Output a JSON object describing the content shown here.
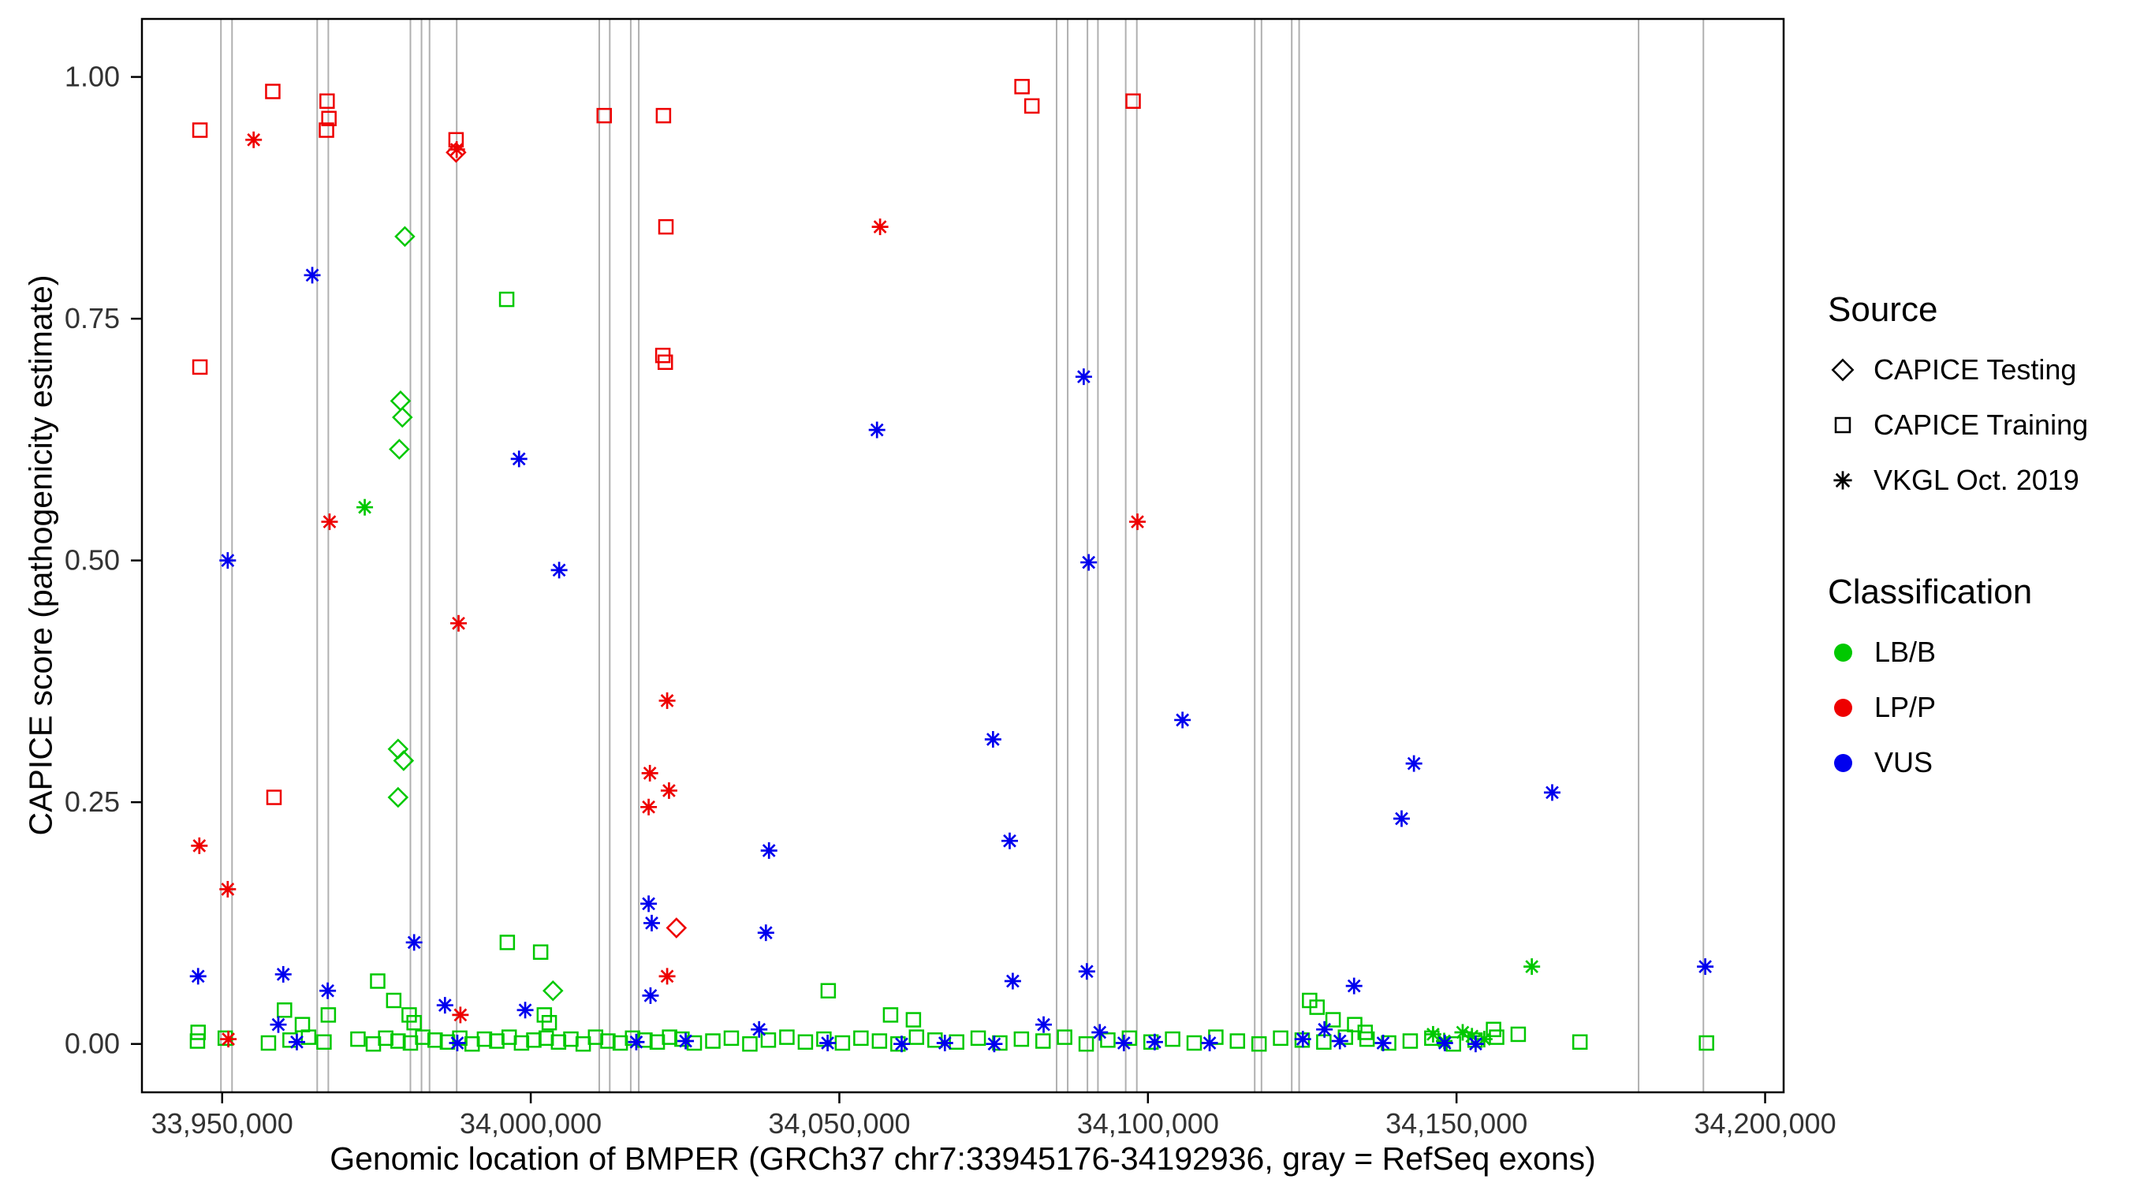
{
  "chart_data": {
    "type": "scatter",
    "title": "",
    "xlabel": "Genomic location of BMPER (GRCh37 chr7:33945176-34192936, gray = RefSeq exons)",
    "ylabel": "CAPICE score (pathogenicity estimate)",
    "xlim": [
      33937000,
      34203000
    ],
    "ylim": [
      -0.05,
      1.06
    ],
    "xticks": [
      33950000,
      34000000,
      34050000,
      34100000,
      34150000,
      34200000
    ],
    "xtick_labels": [
      "33,950,000",
      "34,000,000",
      "34,050,000",
      "34,100,000",
      "34,150,000",
      "34,200,000"
    ],
    "yticks": [
      0,
      0.25,
      0.5,
      0.75,
      1.0
    ],
    "ytick_labels": [
      "0.00",
      "0.25",
      "0.50",
      "0.75",
      "1.00"
    ],
    "grid": false,
    "legend_position": "right",
    "panel_border_color": "#000000",
    "tick_label_color": "#333333",
    "exon_color": "#b0b0b0",
    "exon_positions": [
      33949800,
      33951600,
      33965400,
      33967200,
      33980500,
      33982300,
      33983600,
      33988000,
      34011100,
      34012800,
      34016200,
      34017500,
      34085200,
      34087000,
      34090200,
      34091900,
      34096400,
      34098200,
      34117300,
      34118400,
      34123300,
      34124500,
      34179500,
      34190000
    ],
    "colors": {
      "LB/B": "#00c800",
      "LP/P": "#ee0000",
      "VUS": "#0000ee"
    },
    "shapes": {
      "CAPICE Testing": "diamond",
      "CAPICE Training": "square",
      "VKGL Oct. 2019": "asterisk"
    },
    "legend": {
      "source_title": "Source",
      "source_items": [
        "CAPICE Testing",
        "CAPICE Training",
        "VKGL Oct. 2019"
      ],
      "classification_title": "Classification",
      "classification_items": [
        "LB/B",
        "LP/P",
        "VUS"
      ]
    },
    "series": [
      {
        "source": "CAPICE Testing",
        "classification": "LB/B",
        "points": [
          [
            33979600,
            0.835
          ],
          [
            33978900,
            0.665
          ],
          [
            33979200,
            0.648
          ],
          [
            33978700,
            0.615
          ],
          [
            33978500,
            0.305
          ],
          [
            33979400,
            0.293
          ],
          [
            33978500,
            0.255
          ],
          [
            34003600,
            0.055
          ]
        ]
      },
      {
        "source": "CAPICE Testing",
        "classification": "LP/P",
        "points": [
          [
            33987900,
            0.922
          ],
          [
            34023600,
            0.12
          ]
        ]
      },
      {
        "source": "CAPICE Training",
        "classification": "LP/P",
        "points": [
          [
            33946400,
            0.945
          ],
          [
            33958200,
            0.985
          ],
          [
            33967000,
            0.975
          ],
          [
            33967300,
            0.957
          ],
          [
            33966900,
            0.945
          ],
          [
            33946400,
            0.7
          ],
          [
            33958400,
            0.255
          ],
          [
            33987900,
            0.935
          ],
          [
            34011900,
            0.96
          ],
          [
            34021500,
            0.96
          ],
          [
            34021900,
            0.845
          ],
          [
            34021400,
            0.712
          ],
          [
            34021800,
            0.705
          ],
          [
            34079600,
            0.99
          ],
          [
            34081200,
            0.97
          ],
          [
            34097600,
            0.975
          ]
        ]
      },
      {
        "source": "CAPICE Training",
        "classification": "LB/B",
        "points": [
          [
            33996100,
            0.77
          ],
          [
            33996200,
            0.105
          ],
          [
            34001600,
            0.095
          ],
          [
            34048200,
            0.055
          ],
          [
            33975200,
            0.065
          ],
          [
            33977800,
            0.045
          ],
          [
            33960100,
            0.035
          ],
          [
            33967200,
            0.03
          ],
          [
            33980300,
            0.03
          ],
          [
            33981100,
            0.022
          ],
          [
            33963000,
            0.02
          ],
          [
            34002200,
            0.03
          ],
          [
            34003000,
            0.022
          ],
          [
            34058300,
            0.03
          ],
          [
            34062000,
            0.025
          ],
          [
            34126200,
            0.045
          ],
          [
            34127400,
            0.038
          ],
          [
            34130000,
            0.025
          ],
          [
            34133500,
            0.02
          ],
          [
            34135200,
            0.012
          ],
          [
            33946100,
            0.012
          ],
          [
            34156000,
            0.015
          ],
          [
            34160000,
            0.01
          ],
          [
            33946000,
            0.003
          ],
          [
            33950500,
            0.006
          ],
          [
            33957500,
            0.001
          ],
          [
            33961000,
            0.004
          ],
          [
            33964000,
            0.007
          ],
          [
            33966500,
            0.002
          ],
          [
            33972000,
            0.005
          ],
          [
            33974500,
            0.0
          ],
          [
            33976500,
            0.006
          ],
          [
            33978500,
            0.003
          ],
          [
            33980500,
            0.001
          ],
          [
            33982500,
            0.007
          ],
          [
            33984500,
            0.004
          ],
          [
            33986500,
            0.002
          ],
          [
            33988500,
            0.006
          ],
          [
            33990500,
            0.0
          ],
          [
            33992500,
            0.005
          ],
          [
            33994500,
            0.003
          ],
          [
            33996500,
            0.007
          ],
          [
            33998500,
            0.001
          ],
          [
            34000500,
            0.004
          ],
          [
            34002500,
            0.006
          ],
          [
            34004500,
            0.002
          ],
          [
            34006500,
            0.005
          ],
          [
            34008500,
            0.0
          ],
          [
            34010500,
            0.007
          ],
          [
            34012500,
            0.003
          ],
          [
            34014500,
            0.001
          ],
          [
            34016500,
            0.006
          ],
          [
            34018500,
            0.004
          ],
          [
            34020500,
            0.002
          ],
          [
            34022500,
            0.007
          ],
          [
            34024500,
            0.005
          ],
          [
            34026500,
            0.001
          ],
          [
            34029500,
            0.003
          ],
          [
            34032500,
            0.006
          ],
          [
            34035500,
            0.0
          ],
          [
            34038500,
            0.004
          ],
          [
            34041500,
            0.007
          ],
          [
            34044500,
            0.002
          ],
          [
            34047500,
            0.005
          ],
          [
            34050500,
            0.001
          ],
          [
            34053500,
            0.006
          ],
          [
            34056500,
            0.003
          ],
          [
            34059500,
            0.0
          ],
          [
            34062500,
            0.007
          ],
          [
            34065500,
            0.004
          ],
          [
            34069000,
            0.002
          ],
          [
            34072500,
            0.006
          ],
          [
            34076000,
            0.001
          ],
          [
            34079500,
            0.005
          ],
          [
            34083000,
            0.003
          ],
          [
            34086500,
            0.007
          ],
          [
            34090000,
            0.0
          ],
          [
            34093500,
            0.004
          ],
          [
            34097000,
            0.006
          ],
          [
            34100500,
            0.002
          ],
          [
            34104000,
            0.005
          ],
          [
            34107500,
            0.001
          ],
          [
            34111000,
            0.007
          ],
          [
            34114500,
            0.003
          ],
          [
            34118000,
            0.0
          ],
          [
            34121500,
            0.006
          ],
          [
            34125000,
            0.004
          ],
          [
            34128500,
            0.002
          ],
          [
            34132000,
            0.007
          ],
          [
            34135500,
            0.005
          ],
          [
            34139000,
            0.001
          ],
          [
            34142500,
            0.003
          ],
          [
            34146000,
            0.006
          ],
          [
            34149500,
            0.0
          ],
          [
            34153000,
            0.004
          ],
          [
            34156500,
            0.007
          ],
          [
            34170000,
            0.002
          ],
          [
            34190500,
            0.001
          ]
        ]
      },
      {
        "source": "VKGL Oct. 2019",
        "classification": "LP/P",
        "points": [
          [
            33955100,
            0.935
          ],
          [
            33967400,
            0.54
          ],
          [
            33988000,
            0.925
          ],
          [
            33988300,
            0.435
          ],
          [
            34056600,
            0.845
          ],
          [
            34022100,
            0.355
          ],
          [
            34019300,
            0.28
          ],
          [
            34022400,
            0.262
          ],
          [
            34019100,
            0.245
          ],
          [
            33946300,
            0.205
          ],
          [
            33950900,
            0.16
          ],
          [
            34098300,
            0.54
          ],
          [
            34022100,
            0.07
          ],
          [
            33951000,
            0.005
          ],
          [
            33988600,
            0.03
          ]
        ]
      },
      {
        "source": "VKGL Oct. 2019",
        "classification": "LB/B",
        "points": [
          [
            33973100,
            0.555
          ],
          [
            34162200,
            0.08
          ],
          [
            34146200,
            0.01
          ],
          [
            34151000,
            0.012
          ],
          [
            34154500,
            0.005
          ],
          [
            34148000,
            0.003
          ],
          [
            34152500,
            0.008
          ]
        ]
      },
      {
        "source": "VKGL Oct. 2019",
        "classification": "VUS",
        "points": [
          [
            33964600,
            0.795
          ],
          [
            33950900,
            0.5
          ],
          [
            33998100,
            0.605
          ],
          [
            34004600,
            0.49
          ],
          [
            34056100,
            0.635
          ],
          [
            34089600,
            0.69
          ],
          [
            34090400,
            0.498
          ],
          [
            34105600,
            0.335
          ],
          [
            34074900,
            0.315
          ],
          [
            34077600,
            0.21
          ],
          [
            34038600,
            0.2
          ],
          [
            34019100,
            0.145
          ],
          [
            34019600,
            0.125
          ],
          [
            34038100,
            0.115
          ],
          [
            33981100,
            0.105
          ],
          [
            34019400,
            0.05
          ],
          [
            34078100,
            0.065
          ],
          [
            34090100,
            0.075
          ],
          [
            34143100,
            0.29
          ],
          [
            34141100,
            0.233
          ],
          [
            34165500,
            0.26
          ],
          [
            34190300,
            0.08
          ],
          [
            34133400,
            0.06
          ],
          [
            33946100,
            0.07
          ],
          [
            33959900,
            0.072
          ],
          [
            33967100,
            0.055
          ],
          [
            33959100,
            0.02
          ],
          [
            33986100,
            0.04
          ],
          [
            33999100,
            0.035
          ],
          [
            34083100,
            0.02
          ],
          [
            34092200,
            0.012
          ],
          [
            34128600,
            0.015
          ],
          [
            34037000,
            0.015
          ],
          [
            33962100,
            0.002
          ],
          [
            33988100,
            0.001
          ],
          [
            34017100,
            0.002
          ],
          [
            34025100,
            0.003
          ],
          [
            34048100,
            0.001
          ],
          [
            34060100,
            0.0
          ],
          [
            34067100,
            0.001
          ],
          [
            34075100,
            0.0
          ],
          [
            34096100,
            0.001
          ],
          [
            34101100,
            0.002
          ],
          [
            34110000,
            0.001
          ],
          [
            34125100,
            0.005
          ],
          [
            34131100,
            0.003
          ],
          [
            34138100,
            0.001
          ],
          [
            34148100,
            0.001
          ],
          [
            34153100,
            0.0
          ]
        ]
      }
    ]
  }
}
